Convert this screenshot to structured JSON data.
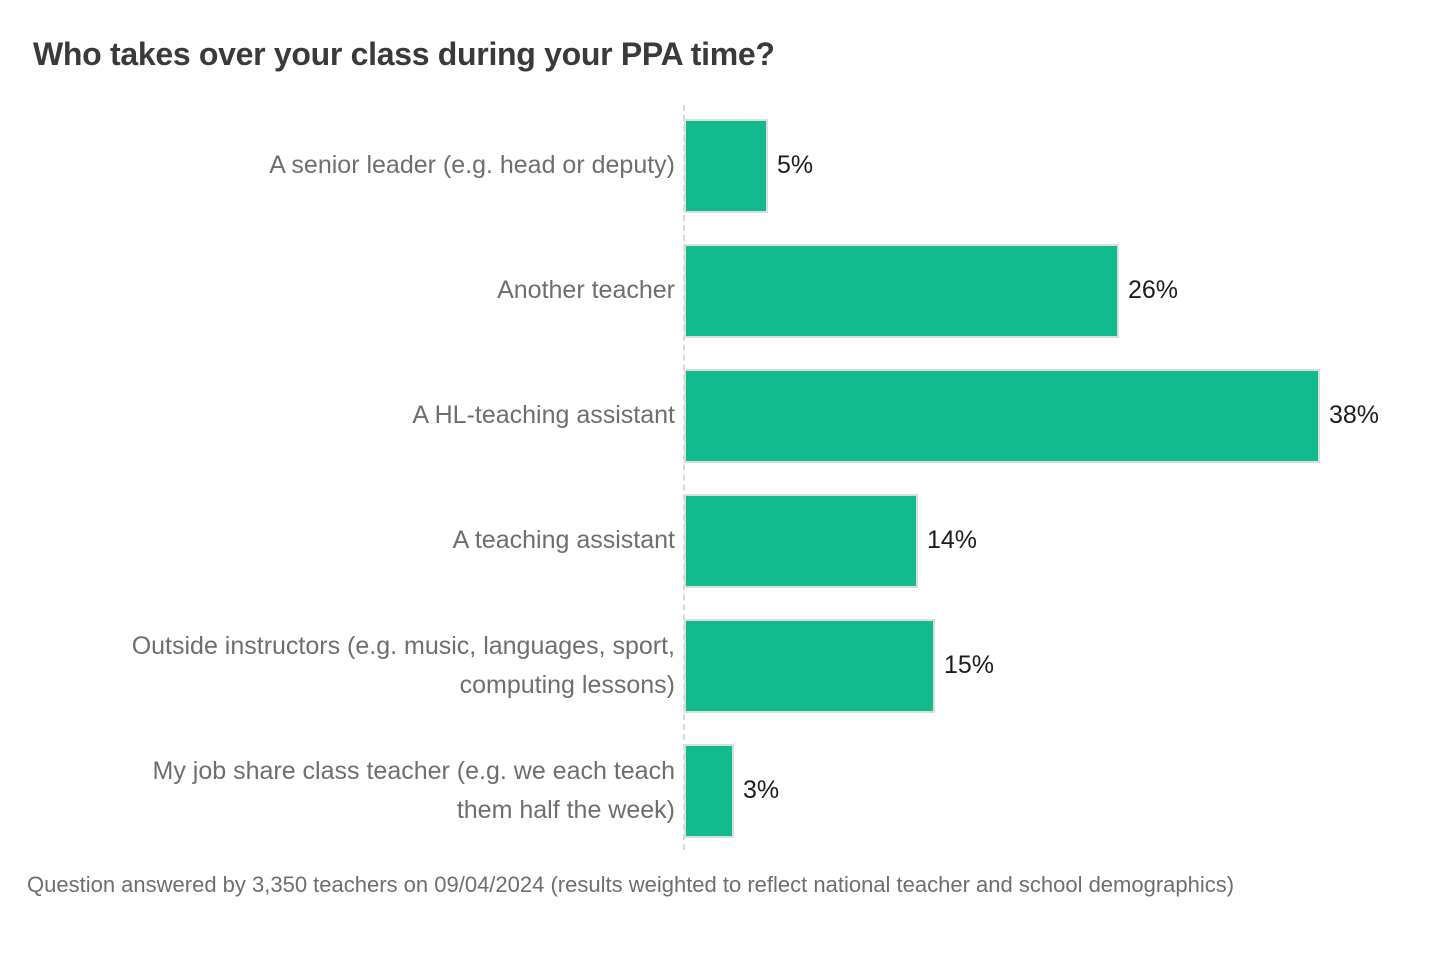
{
  "page": {
    "title": "Who takes over your class during your PPA time?",
    "footnote": "Question answered by 3,350 teachers on 09/04/2024 (results weighted to reflect national teacher and school demographics)"
  },
  "colors": {
    "background": "#ffffff",
    "bar": "#13ba8d",
    "bar_border": "#dcdcdc",
    "axis": "#d9d9d9",
    "title_text": "#3a3a3a",
    "label_text": "#6e6e6e",
    "value_text": "#1c1c1c"
  },
  "chart_data": {
    "type": "bar",
    "orientation": "horizontal",
    "title": "Who takes over your class during your PPA time?",
    "categories": [
      "A senior leader (e.g. head or deputy)",
      "Another teacher",
      "A HL-teaching assistant",
      "A teaching assistant",
      "Outside instructors (e.g. music, languages, sport,\ncomputing lessons)",
      "My job share class teacher (e.g. we each teach\nthem half the week)"
    ],
    "values": [
      5,
      26,
      38,
      14,
      15,
      3
    ],
    "value_labels": [
      "5%",
      "26%",
      "38%",
      "14%",
      "15%",
      "3%"
    ],
    "xlabel": "",
    "ylabel": "",
    "xlim": [
      0,
      40
    ],
    "grid": false,
    "legend": "none",
    "annotation": "Question answered by 3,350 teachers on 09/04/2024 (results weighted to reflect national teacher and school demographics)"
  }
}
